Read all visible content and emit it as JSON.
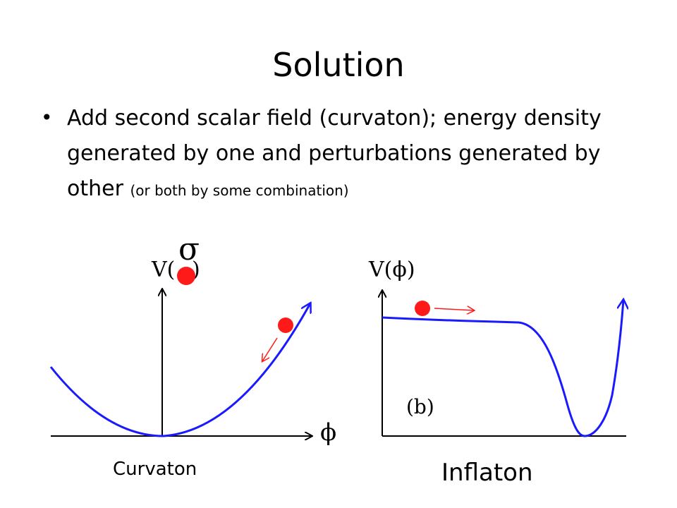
{
  "slide": {
    "title": "Solution",
    "bullet": {
      "main": "Add second scalar field (curvaton); energy density generated by one and perturbations generated by other",
      "aside": "(or both by some combination)"
    }
  },
  "left_diagram": {
    "field_symbol": "σ",
    "y_axis_label": "V(",
    "x_axis_label": "ϕ",
    "caption": "Curvaton",
    "ball_color": "#ff1a1a",
    "curve_color": "#1a1aff"
  },
  "right_diagram": {
    "y_axis_label": "V(ϕ)",
    "panel_label": "(b)",
    "caption": "Inflaton",
    "ball_color": "#ff1a1a",
    "curve_color": "#1a1aff"
  }
}
